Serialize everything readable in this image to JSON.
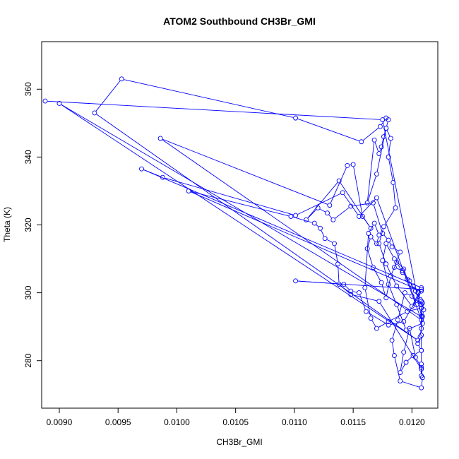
{
  "chart_data": {
    "type": "line",
    "title": "ATOM2 Southbound CH3Br_GMI",
    "xlabel": "CH3Br_GMI",
    "ylabel": "Theta (K)",
    "xlim": [
      0.00885,
      0.01222
    ],
    "ylim": [
      266,
      374
    ],
    "xticks": [
      0.009,
      0.0095,
      0.01,
      0.0105,
      0.011,
      0.0115,
      0.012
    ],
    "xtick_labels": [
      "0.0090",
      "0.0095",
      "0.0100",
      "0.0105",
      "0.0110",
      "0.0115",
      "0.0120"
    ],
    "yticks": [
      280,
      300,
      320,
      340,
      360
    ],
    "ytick_labels": [
      "280",
      "300",
      "320",
      "340",
      "360"
    ],
    "grid": false,
    "series": [
      {
        "color": "#0000ff",
        "marker": "open-circle",
        "x": [
          0.00888,
          0.01175,
          0.01208,
          0.009,
          0.01205,
          0.0093,
          0.00953,
          0.01101,
          0.01157,
          0.01173,
          0.01178,
          0.0118,
          0.01178,
          0.01176,
          0.01174,
          0.01172,
          0.01168,
          0.01162,
          0.0117,
          0.01178,
          0.01182,
          0.0118,
          0.01184,
          0.01186,
          0.01176,
          0.01172,
          0.01178,
          0.01187,
          0.012,
          0.01208,
          0.0097,
          0.00988,
          0.01101,
          0.01141,
          0.01155,
          0.0117,
          0.01208,
          0.00986,
          0.0113,
          0.01145,
          0.0115,
          0.01158,
          0.01165,
          0.01138,
          0.0111,
          0.0112,
          0.01128,
          0.01133,
          0.01148,
          0.01167,
          0.01175,
          0.0118,
          0.01183,
          0.0119,
          0.01185,
          0.01192,
          0.01196,
          0.01201,
          0.01205,
          0.01207,
          0.01209,
          0.01208,
          0.01196,
          0.0118,
          0.0117,
          0.01165,
          0.0116,
          0.01163,
          0.01168,
          0.01172,
          0.0117,
          0.01165,
          0.01162,
          0.01167,
          0.01174,
          0.01178,
          0.01182,
          0.01187,
          0.01192,
          0.01198,
          0.01203,
          0.01208,
          0.0121,
          0.01209,
          0.01207,
          0.01205,
          0.01208,
          0.01201,
          0.01195,
          0.0119,
          0.01193,
          0.01198,
          0.01203,
          0.01208,
          0.01209,
          0.01208,
          0.0119,
          0.01185,
          0.01183,
          0.01188,
          0.01194,
          0.012,
          0.01208,
          0.01209,
          0.01195,
          0.01187,
          0.0118,
          0.01175,
          0.01178,
          0.01185,
          0.01193,
          0.01204,
          0.01208,
          0.01101,
          0.01142,
          0.01148,
          0.01155,
          0.01161,
          0.0118,
          0.01193,
          0.01208,
          0.0101,
          0.01097,
          0.01117,
          0.01122,
          0.01126,
          0.01134,
          0.01137,
          0.01138,
          0.01148,
          0.01172,
          0.01208,
          0.01208,
          0.01208,
          0.01208,
          0.01208,
          0.01208,
          0.01208
        ],
        "y": [
          356.5,
          351.0,
          293.0,
          355.8,
          286.0,
          353.0,
          363.0,
          351.5,
          344.5,
          349.0,
          351.5,
          351.0,
          348.5,
          346.0,
          343.0,
          341.0,
          345.0,
          326.5,
          335.0,
          348.5,
          345.5,
          340.0,
          332.5,
          325.0,
          319.5,
          314.5,
          308.5,
          302.0,
          296.0,
          301.5,
          336.5,
          334.0,
          322.8,
          329.5,
          322.5,
          328.0,
          292.0,
          345.5,
          325.8,
          337.5,
          337.8,
          322.5,
          319.0,
          333.0,
          321.5,
          325.0,
          323.5,
          321.5,
          325.5,
          326.5,
          317.5,
          315.5,
          313.5,
          312.0,
          307.5,
          306.5,
          304.0,
          302.0,
          300.0,
          298.0,
          297.0,
          295.5,
          294.5,
          291.5,
          289.5,
          292.5,
          301.5,
          317.5,
          320.5,
          317.0,
          314.5,
          316.5,
          313.0,
          307.5,
          303.0,
          298.5,
          305.0,
          309.0,
          306.0,
          303.5,
          300.5,
          297.5,
          295.0,
          293.0,
          287.0,
          285.0,
          283.0,
          281.5,
          279.5,
          276.5,
          282.5,
          289.5,
          281.0,
          278.0,
          275.0,
          272.0,
          274.0,
          281.5,
          286.0,
          292.0,
          300.0,
          299.0,
          296.5,
          291.0,
          289.0,
          296.5,
          302.5,
          309.5,
          314.5,
          310.0,
          307.0,
          296.5,
          301.0,
          303.5,
          302.5,
          300.5,
          300.0,
          294.5,
          290.5,
          291.5,
          300.5,
          330.0,
          322.5,
          320.5,
          319.0,
          316.0,
          314.5,
          308.5,
          302.5,
          299.5,
          297.5,
          277.5,
          275.5,
          279.0,
          283.0,
          287.5,
          289.5,
          295.5
        ]
      }
    ]
  }
}
